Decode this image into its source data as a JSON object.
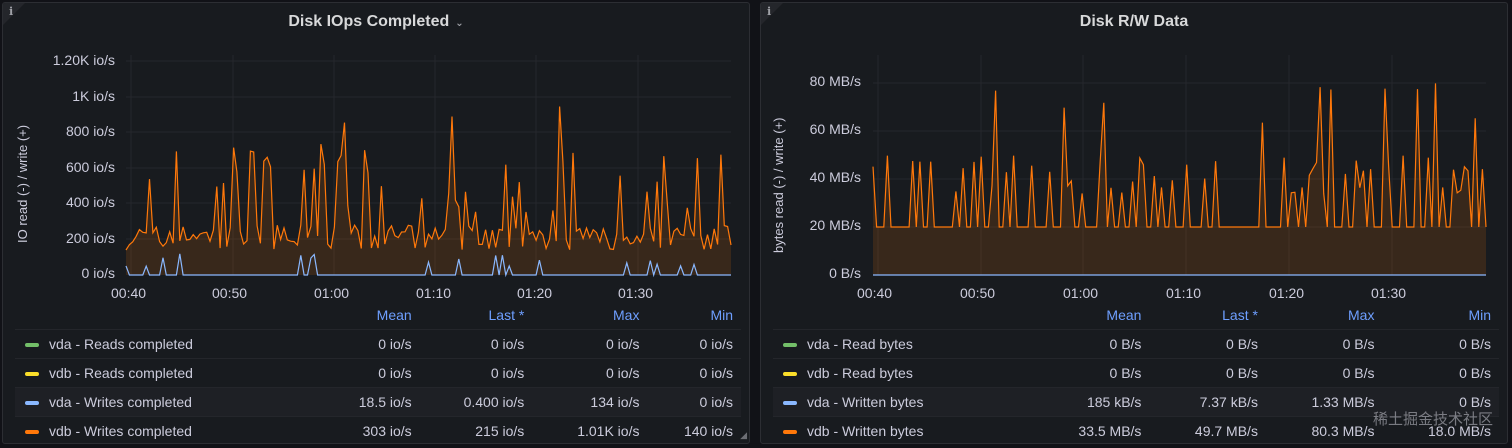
{
  "colors": {
    "green": "#73bf69",
    "yellow": "#fade2a",
    "blue": "#8ab8ff",
    "orange": "#ff780a",
    "header": "#6e9fff"
  },
  "panels": [
    {
      "info_icon": "i",
      "title": "Disk IOps Completed",
      "chevron_icon": "chevron-down-icon",
      "y_axis_label": "IO read (-) / write (+)",
      "y_ticks": [
        "1.20K io/s",
        "1K io/s",
        "800 io/s",
        "600 io/s",
        "400 io/s",
        "200 io/s",
        "0 io/s"
      ],
      "x_ticks": [
        "00:40",
        "00:50",
        "01:00",
        "01:10",
        "01:20",
        "01:30"
      ],
      "legend_headers": [
        "Mean",
        "Last *",
        "Max",
        "Min"
      ],
      "legend_rows": [
        {
          "name": "vda - Reads completed",
          "color": "green",
          "mean": "0 io/s",
          "last": "0 io/s",
          "max": "0 io/s",
          "min": "0 io/s"
        },
        {
          "name": "vdb - Reads completed",
          "color": "yellow",
          "mean": "0 io/s",
          "last": "0 io/s",
          "max": "0 io/s",
          "min": "0 io/s"
        },
        {
          "name": "vda - Writes completed",
          "color": "blue",
          "mean": "18.5 io/s",
          "last": "0.400 io/s",
          "max": "134 io/s",
          "min": "0 io/s"
        },
        {
          "name": "vdb - Writes completed",
          "color": "orange",
          "mean": "303 io/s",
          "last": "215 io/s",
          "max": "1.01K io/s",
          "min": "140 io/s"
        }
      ]
    },
    {
      "info_icon": "i",
      "title": "Disk R/W Data",
      "y_axis_label": "bytes read (-) / write (+)",
      "y_ticks": [
        "80 MB/s",
        "60 MB/s",
        "40 MB/s",
        "20 MB/s",
        "0 B/s"
      ],
      "x_ticks": [
        "00:40",
        "00:50",
        "01:00",
        "01:10",
        "01:20",
        "01:30"
      ],
      "legend_headers": [
        "Mean",
        "Last *",
        "Max",
        "Min"
      ],
      "legend_rows": [
        {
          "name": "vda - Read bytes",
          "color": "green",
          "mean": "0 B/s",
          "last": "0 B/s",
          "max": "0 B/s",
          "min": "0 B/s"
        },
        {
          "name": "vdb - Read bytes",
          "color": "yellow",
          "mean": "0 B/s",
          "last": "0 B/s",
          "max": "0 B/s",
          "min": "0 B/s"
        },
        {
          "name": "vda - Written bytes",
          "color": "blue",
          "mean": "185 kB/s",
          "last": "7.37 kB/s",
          "max": "1.33 MB/s",
          "min": "0 B/s"
        },
        {
          "name": "vdb - Written bytes",
          "color": "orange",
          "mean": "33.5 MB/s",
          "last": "49.7 MB/s",
          "max": "80.3 MB/s",
          "min": "18.0 MB/s"
        }
      ]
    }
  ],
  "watermark": "稀土掘金技术社区"
}
